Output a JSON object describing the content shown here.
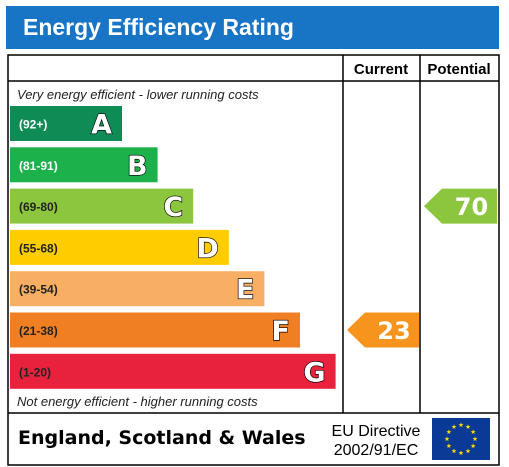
{
  "header": {
    "title": "Energy Efficiency Rating"
  },
  "columns": {
    "current": "Current",
    "potential": "Potential"
  },
  "notes": {
    "top": "Very energy efficient - lower running costs",
    "bottom": "Not energy efficient - higher running costs"
  },
  "footer": {
    "region": "England, Scotland & Wales",
    "directive_line1": "EU Directive",
    "directive_line2": "2002/91/EC",
    "flag_icon": "eu-flag-icon"
  },
  "chart_data": {
    "type": "bar",
    "title": "Energy Efficiency Rating",
    "categories": [
      "A",
      "B",
      "C",
      "D",
      "E",
      "F",
      "G"
    ],
    "bands": [
      {
        "letter": "A",
        "range": "(92+)",
        "color": "#0f8c55"
      },
      {
        "letter": "B",
        "range": "(81-91)",
        "color": "#1db14b"
      },
      {
        "letter": "C",
        "range": "(69-80)",
        "color": "#8cc63f"
      },
      {
        "letter": "D",
        "range": "(55-68)",
        "color": "#ffcc00"
      },
      {
        "letter": "E",
        "range": "(39-54)",
        "color": "#f8ae63"
      },
      {
        "letter": "F",
        "range": "(21-38)",
        "color": "#f07f23"
      },
      {
        "letter": "G",
        "range": "(1-20)",
        "color": "#e8223c"
      }
    ],
    "series": [
      {
        "name": "Current",
        "value": 23,
        "band": "F",
        "color": "#f7941d"
      },
      {
        "name": "Potential",
        "value": 70,
        "band": "C",
        "color": "#8cc63f"
      }
    ]
  }
}
